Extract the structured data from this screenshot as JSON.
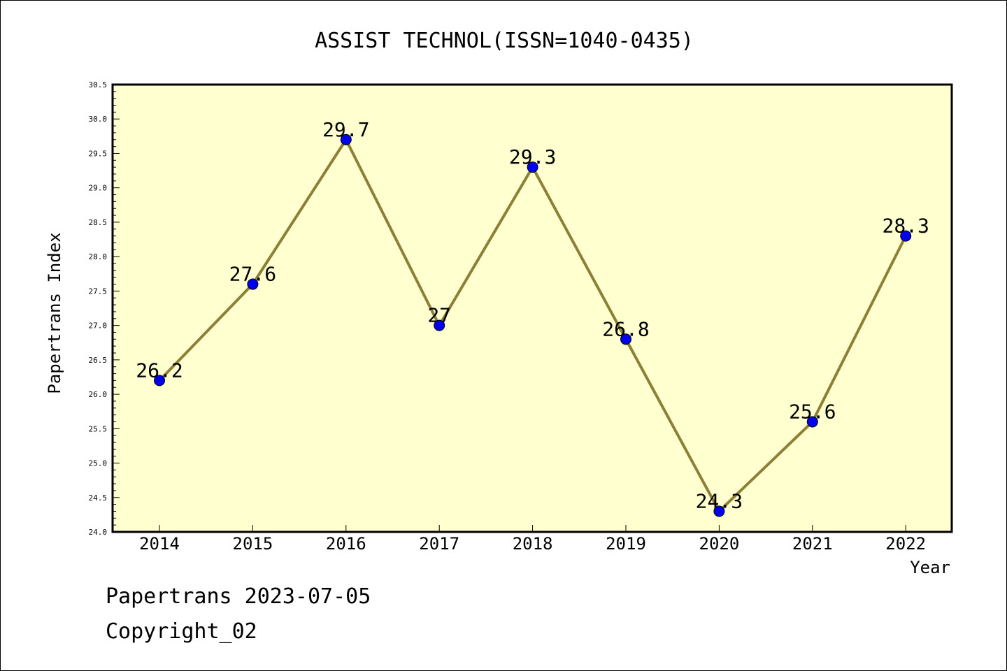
{
  "chart_data": {
    "type": "line",
    "title": "ASSIST TECHNOL(ISSN=1040-0435)",
    "xlabel": "Year",
    "ylabel": "Papertrans Index",
    "categories": [
      "2014",
      "2015",
      "2016",
      "2017",
      "2018",
      "2019",
      "2020",
      "2021",
      "2022"
    ],
    "values": [
      26.2,
      27.6,
      29.7,
      27,
      29.3,
      26.8,
      24.3,
      25.6,
      28.3
    ],
    "data_labels": [
      "26.2",
      "27.6",
      "29.7",
      "27",
      "29.3",
      "26.8",
      "24.3",
      "25.6",
      "28.3"
    ],
    "ylim": [
      24.0,
      30.5
    ],
    "yticks": [
      "24.0",
      "24.5",
      "25.0",
      "25.5",
      "26.0",
      "26.5",
      "27.0",
      "27.5",
      "28.0",
      "28.5",
      "29.0",
      "29.5",
      "30.0",
      "30.5"
    ],
    "grid": false,
    "colors": {
      "plot_background": "#ffffd0",
      "line": "#8b8035",
      "marker": "#0000ee"
    }
  },
  "footer": {
    "line1": "Papertrans 2023-07-05",
    "line2": "Copyright_02"
  }
}
